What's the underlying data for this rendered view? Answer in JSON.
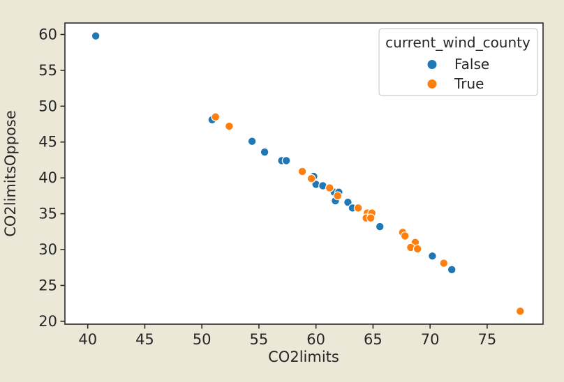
{
  "figure": {
    "background_color": "#ece8d8",
    "plot_background_color": "#ffffff"
  },
  "chart_data": {
    "type": "scatter",
    "title": "",
    "xlabel": "CO2limits",
    "ylabel": "CO2limitsOppose",
    "xlim": [
      38.0,
      79.9
    ],
    "ylim": [
      19.6,
      61.6
    ],
    "xticks": [
      40,
      45,
      50,
      55,
      60,
      65,
      70,
      75
    ],
    "yticks": [
      20,
      25,
      30,
      35,
      40,
      45,
      50,
      55,
      60
    ],
    "grid": false,
    "legend": {
      "title": "current_wind_county",
      "position": "upper right",
      "entries": [
        {
          "label": "False",
          "color": "#1f77b4"
        },
        {
          "label": "True",
          "color": "#ff7f0e"
        }
      ]
    },
    "series": [
      {
        "name": "False",
        "color": "#1f77b4",
        "points": [
          [
            40.7,
            59.8
          ],
          [
            50.9,
            48.1
          ],
          [
            54.4,
            45.1
          ],
          [
            55.5,
            43.6
          ],
          [
            57.0,
            42.4
          ],
          [
            57.4,
            42.4
          ],
          [
            59.8,
            40.2
          ],
          [
            60.0,
            39.1
          ],
          [
            60.6,
            38.9
          ],
          [
            61.6,
            38.0
          ],
          [
            62.0,
            38.0
          ],
          [
            61.7,
            36.8
          ],
          [
            62.8,
            36.6
          ],
          [
            63.2,
            35.8
          ],
          [
            65.6,
            33.2
          ],
          [
            70.2,
            29.1
          ],
          [
            71.9,
            27.2
          ]
        ]
      },
      {
        "name": "True",
        "color": "#ff7f0e",
        "points": [
          [
            51.2,
            48.5
          ],
          [
            52.4,
            47.2
          ],
          [
            58.8,
            40.9
          ],
          [
            59.6,
            39.9
          ],
          [
            61.2,
            38.6
          ],
          [
            61.9,
            37.5
          ],
          [
            63.7,
            35.8
          ],
          [
            64.5,
            35.1
          ],
          [
            64.9,
            35.1
          ],
          [
            64.4,
            34.4
          ],
          [
            64.8,
            34.4
          ],
          [
            67.6,
            32.4
          ],
          [
            67.8,
            31.9
          ],
          [
            68.7,
            31.0
          ],
          [
            68.3,
            30.3
          ],
          [
            68.9,
            30.1
          ],
          [
            71.2,
            28.1
          ],
          [
            77.9,
            21.4
          ]
        ]
      }
    ]
  }
}
